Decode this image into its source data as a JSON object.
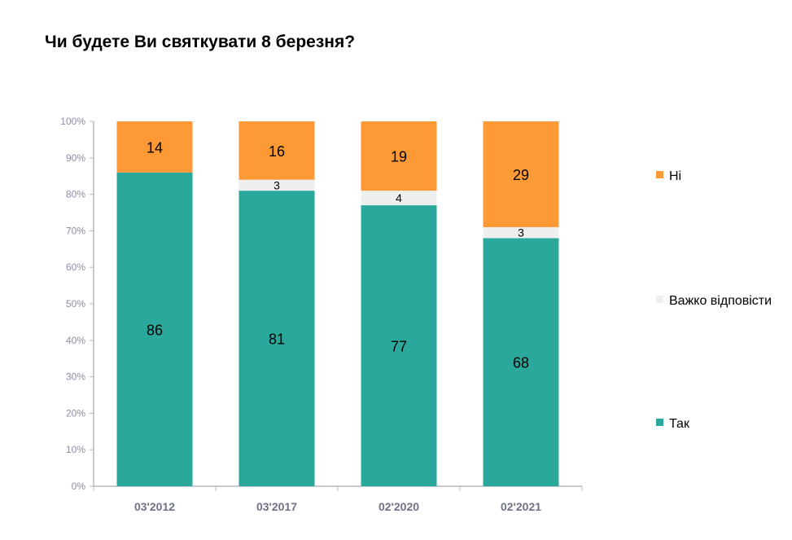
{
  "chart_data": {
    "type": "bar",
    "stacked": true,
    "title": "Чи будете Ви святкувати 8 березня?",
    "categories": [
      "03'2012",
      "03'2017",
      "02'2020",
      "02'2021"
    ],
    "series": [
      {
        "name": "Так",
        "values": [
          86,
          81,
          77,
          68
        ],
        "color": "#2aa89c",
        "labels": [
          "86",
          "81",
          "77",
          "68"
        ]
      },
      {
        "name": "Важко відповісти",
        "values": [
          0,
          3,
          4,
          3
        ],
        "color": "#efefef",
        "labels": [
          "",
          "3",
          "4",
          "3"
        ]
      },
      {
        "name": "Ні",
        "values": [
          14,
          16,
          19,
          29
        ],
        "color": "#fd9a35",
        "labels": [
          "14",
          "16",
          "19",
          "29"
        ]
      }
    ],
    "ylim": [
      0,
      100
    ],
    "yticks": [
      "0%",
      "10%",
      "20%",
      "30%",
      "40%",
      "50%",
      "60%",
      "70%",
      "80%",
      "90%",
      "100%"
    ],
    "grid": false,
    "legend_position": "right",
    "legend_order": [
      "Ні",
      "Важко відповісти",
      "Так"
    ]
  }
}
